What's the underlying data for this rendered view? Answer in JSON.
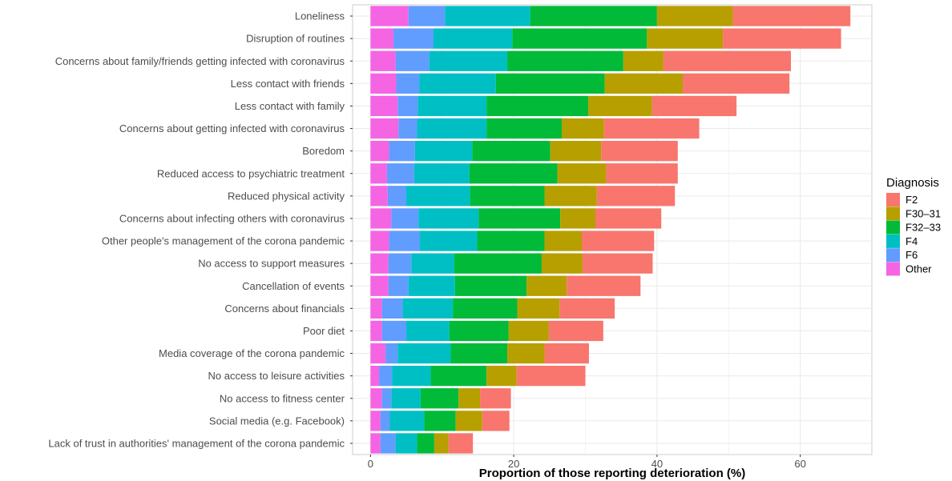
{
  "chart_data": {
    "type": "bar",
    "orientation": "horizontal",
    "stacked": true,
    "title": "",
    "xlabel": "Proportion of those reporting deterioration (%)",
    "ylabel": "",
    "xlim": [
      -2.5,
      70
    ],
    "x_ticks": [
      0,
      20,
      40,
      60
    ],
    "grid": true,
    "legend": {
      "title": "Diagnosis",
      "position": "right"
    },
    "categories": [
      "Loneliness",
      "Disruption of routines",
      "Concerns about family/friends getting infected with coronavirus",
      "Less contact with friends",
      "Less contact with family",
      "Concerns about getting infected with coronavirus",
      "Boredom",
      "Reduced access to psychiatric treatment",
      "Reduced physical activity",
      "Concerns about infecting others with coronavirus",
      "Other people's management of the corona pandemic",
      "No access to support measures",
      "Cancellation of events",
      "Concerns about financials",
      "Poor diet",
      "Media coverage of the corona pandemic",
      "No access to leisure activities",
      "No access to fitness center",
      "Social media (e.g. Facebook)",
      "Lack of trust in authorities' management of the corona pandemic"
    ],
    "series": [
      {
        "name": "Other",
        "color": "#F564E3",
        "values": [
          5.3,
          3.2,
          3.5,
          3.6,
          3.8,
          3.9,
          2.6,
          2.3,
          2.4,
          2.9,
          2.6,
          2.5,
          2.5,
          1.6,
          1.6,
          2.1,
          1.2,
          1.6,
          1.4,
          1.4
        ]
      },
      {
        "name": "F6",
        "color": "#619CFF",
        "values": [
          5.1,
          5.6,
          4.7,
          3.2,
          2.8,
          2.6,
          3.6,
          3.8,
          2.6,
          3.8,
          4.3,
          3.2,
          2.8,
          2.9,
          3.4,
          1.7,
          1.8,
          1.3,
          1.3,
          2.1
        ]
      },
      {
        "name": "F4",
        "color": "#00BFC4",
        "values": [
          11.9,
          11.0,
          10.9,
          10.7,
          9.6,
          9.7,
          8.0,
          7.7,
          8.9,
          8.4,
          8.0,
          6.0,
          6.5,
          7.0,
          6.0,
          7.4,
          5.4,
          4.1,
          4.8,
          3.0
        ]
      },
      {
        "name": "F32–33",
        "color": "#00BA38",
        "values": [
          17.7,
          18.8,
          16.2,
          15.2,
          14.2,
          10.5,
          10.9,
          12.3,
          10.4,
          11.4,
          9.4,
          12.2,
          10.0,
          9.0,
          8.3,
          7.9,
          7.8,
          5.3,
          4.4,
          2.4
        ]
      },
      {
        "name": "F30–31",
        "color": "#B79F00",
        "values": [
          10.6,
          10.6,
          5.6,
          10.9,
          8.9,
          5.9,
          7.1,
          6.8,
          7.3,
          4.9,
          5.2,
          5.7,
          5.6,
          5.9,
          5.6,
          5.2,
          4.2,
          3.0,
          3.7,
          2.0
        ]
      },
      {
        "name": "F2",
        "color": "#F8766D",
        "values": [
          16.4,
          16.5,
          17.8,
          14.9,
          11.8,
          13.3,
          10.7,
          10.0,
          10.9,
          9.2,
          10.1,
          9.8,
          10.3,
          7.7,
          7.6,
          6.2,
          9.6,
          4.3,
          3.8,
          3.4
        ]
      }
    ],
    "legend_order": [
      "F2",
      "F30–31",
      "F32–33",
      "F4",
      "F6",
      "Other"
    ]
  }
}
